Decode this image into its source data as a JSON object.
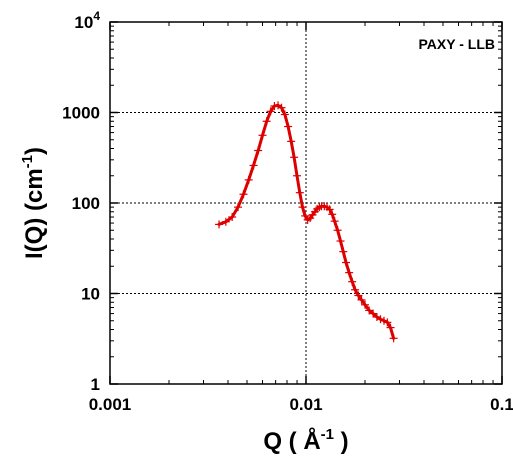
{
  "chart_data": {
    "type": "line",
    "annotation": "PAXY - LLB",
    "xlabel": {
      "base": "Q ( Å",
      "sup": "-1",
      "end": " )"
    },
    "ylabel": {
      "base": "I(Q) (cm",
      "sup": "-1",
      "end": ")"
    },
    "xscale": "log",
    "yscale": "log",
    "xlim": [
      0.001,
      0.1
    ],
    "ylim": [
      1,
      10000
    ],
    "x_ticks": [
      {
        "value": 0.001,
        "label": "0.001"
      },
      {
        "value": 0.01,
        "label": "0.01"
      },
      {
        "value": 0.1,
        "label": "0.1"
      }
    ],
    "y_ticks": [
      {
        "value": 1,
        "label": "1",
        "sup": ""
      },
      {
        "value": 10,
        "label": "10",
        "sup": ""
      },
      {
        "value": 100,
        "label": "100",
        "sup": ""
      },
      {
        "value": 1000,
        "label": "1000",
        "sup": ""
      },
      {
        "value": 10000,
        "label": "10",
        "sup": "4"
      }
    ],
    "grid": "dotted at major ticks",
    "series": [
      {
        "color": "#dd0000",
        "error_bars": true,
        "x": [
          0.0036,
          0.0039,
          0.0042,
          0.0045,
          0.0048,
          0.0051,
          0.0054,
          0.0057,
          0.006,
          0.0063,
          0.0066,
          0.0069,
          0.0072,
          0.0075,
          0.0078,
          0.0081,
          0.0084,
          0.0087,
          0.009,
          0.0093,
          0.0096,
          0.0099,
          0.0102,
          0.0105,
          0.0108,
          0.0111,
          0.0114,
          0.0117,
          0.012,
          0.0124,
          0.0128,
          0.0132,
          0.0136,
          0.014,
          0.0145,
          0.015,
          0.0155,
          0.016,
          0.0166,
          0.0172,
          0.0178,
          0.0185,
          0.0192,
          0.02,
          0.021,
          0.022,
          0.023,
          0.024,
          0.025,
          0.026,
          0.027,
          0.028
        ],
        "y": [
          58,
          62,
          70,
          90,
          125,
          180,
          260,
          380,
          560,
          800,
          1030,
          1180,
          1200,
          1130,
          950,
          700,
          480,
          320,
          200,
          130,
          90,
          72,
          65,
          68,
          74,
          80,
          86,
          90,
          92,
          92,
          90,
          85,
          75,
          63,
          50,
          38,
          29,
          22,
          17,
          13.5,
          11,
          9.5,
          8.5,
          7.5,
          6.5,
          6,
          5.5,
          5.2,
          5,
          4.8,
          4.2,
          3.2
        ]
      }
    ]
  }
}
